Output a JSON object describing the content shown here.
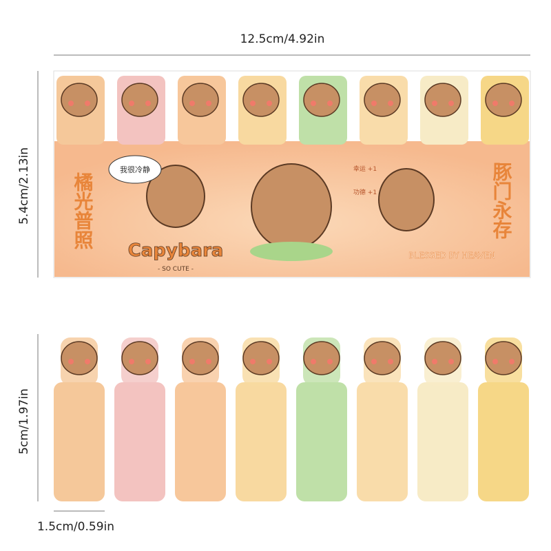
{
  "dimensions": {
    "width": "12.5cm/4.92in",
    "height": "5.4cm/2.13in",
    "tab_height": "5cm/1.97in",
    "tab_width": "1.5cm/0.59in"
  },
  "sheet": {
    "left_slogan": "橘光普照",
    "right_slogan": "豚门永存",
    "brand": "Capybara",
    "tagline": "- SO CUTE -",
    "blessing": "BLESSED BY HEAVEN",
    "bubble": "我很冷静",
    "luck": "幸运 +1",
    "merit": "功德 +1"
  }
}
